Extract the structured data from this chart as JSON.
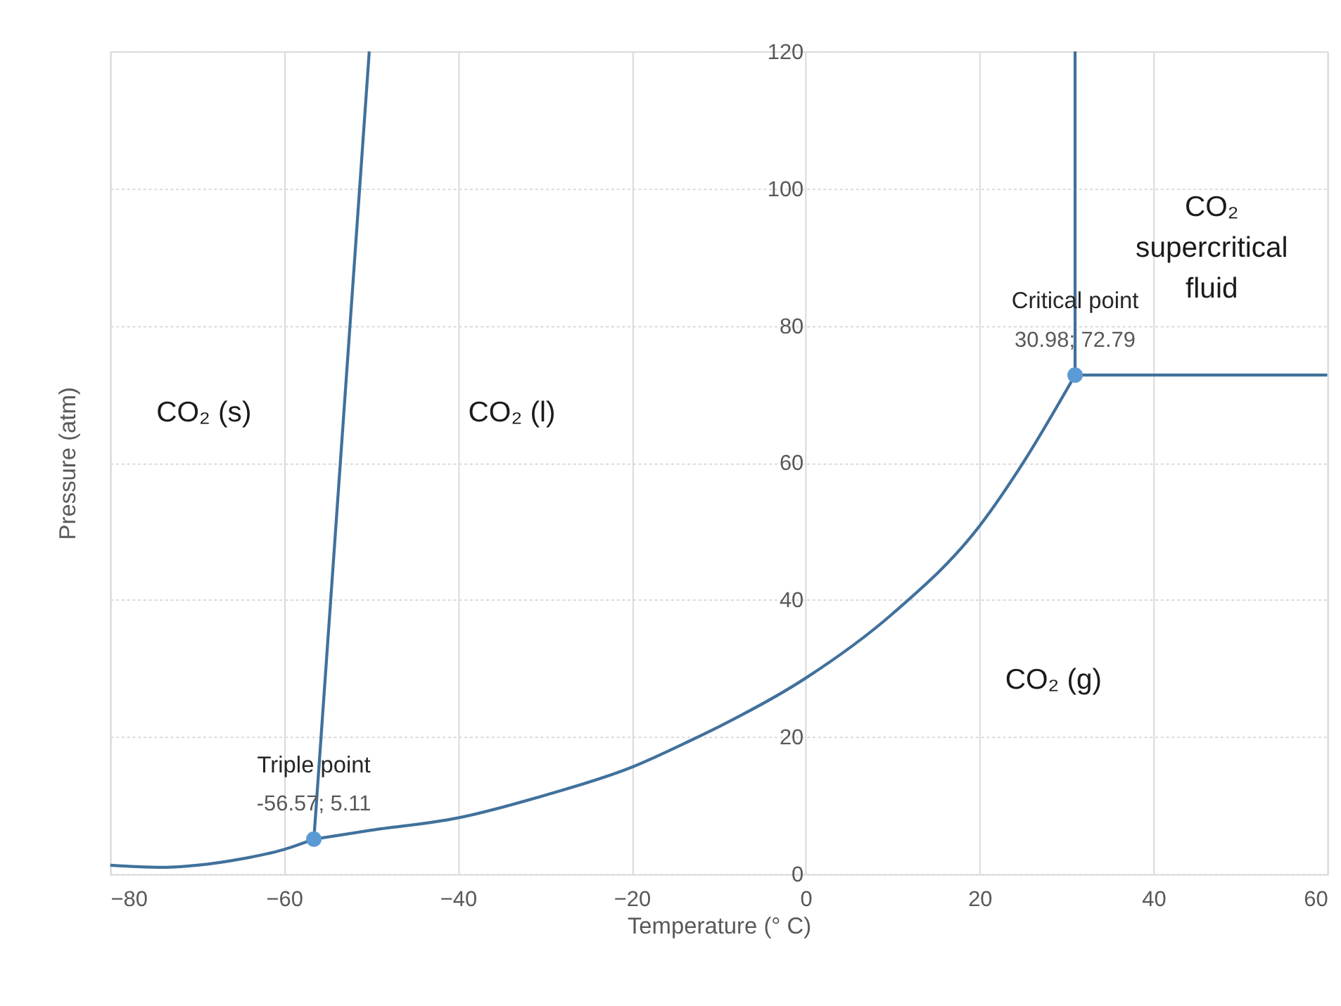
{
  "chart_data": {
    "type": "line",
    "xlabel": "Temperature (° C)",
    "ylabel": "Pressure (atm)",
    "xlim": [
      -80,
      60
    ],
    "ylim": [
      0,
      120
    ],
    "xticks": [
      -80,
      -60,
      -40,
      -20,
      0,
      20,
      40,
      60
    ],
    "yticks": [
      0,
      20,
      40,
      60,
      80,
      100,
      120
    ],
    "grid": true,
    "line_style": "solid",
    "series": [
      {
        "color": "#41719c",
        "x": [
          -80,
          -77,
          -74,
          -70,
          -65,
          -60,
          -56.57
        ],
        "values": [
          1.3,
          1.1,
          1.0,
          1.3,
          2.2,
          3.6,
          5.11
        ]
      },
      {
        "color": "#41719c",
        "x": [
          -56.57,
          -50,
          -40,
          -30,
          -20,
          -13.4,
          -10,
          0,
          10,
          20,
          25,
          30.98
        ],
        "values": [
          5.11,
          6.4,
          8.2,
          11.5,
          15.6,
          19.4,
          21.5,
          28.6,
          38,
          50.8,
          60,
          72.79
        ]
      },
      {
        "color": "#41719c",
        "x": [
          -56.57,
          -50.2
        ],
        "values": [
          5.11,
          120
        ]
      },
      {
        "color": "#41719c",
        "x": [
          30.98,
          30.98
        ],
        "values": [
          72.79,
          120
        ]
      },
      {
        "color": "#41719c",
        "x": [
          30.98,
          60
        ],
        "values": [
          72.79,
          72.79
        ]
      },
      {
        "type": "scatter",
        "marker": "circle",
        "name": "Triple point",
        "color": "#5b9bd5",
        "x": [
          -56.57
        ],
        "values": [
          5.11
        ],
        "value_labels": [
          "-56.57; 5.11"
        ]
      },
      {
        "type": "scatter",
        "marker": "circle",
        "name": "Critical point",
        "color": "#5b9bd5",
        "x": [
          30.98
        ],
        "values": [
          72.79
        ],
        "value_labels": [
          "30.98; 72.79"
        ]
      }
    ],
    "annotations": [
      "CO₂ (s)",
      "CO₂ (l)",
      "CO₂ (g)",
      "CO₂\nsupercritical\nfluid"
    ]
  }
}
